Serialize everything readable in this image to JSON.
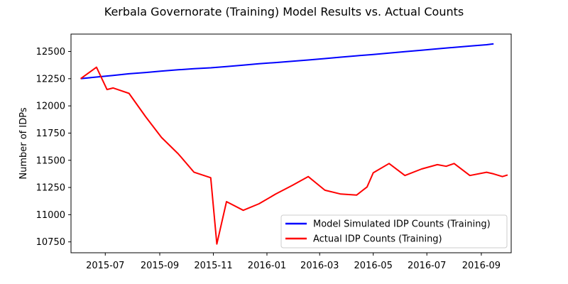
{
  "chart_data": {
    "type": "line",
    "title": "Kerbala Governorate (Training) Model Results vs. Actual Counts",
    "xlabel": "",
    "ylabel": "Number of IDPs",
    "xlim": [
      "2015-05-23",
      "2016-10-05"
    ],
    "ylim": [
      10650,
      12660
    ],
    "x_ticks": [
      {
        "date": "2015-07-01",
        "label": "2015-07"
      },
      {
        "date": "2015-09-01",
        "label": "2015-09"
      },
      {
        "date": "2015-11-01",
        "label": "2015-11"
      },
      {
        "date": "2016-01-01",
        "label": "2016-01"
      },
      {
        "date": "2016-03-01",
        "label": "2016-03"
      },
      {
        "date": "2016-05-01",
        "label": "2016-05"
      },
      {
        "date": "2016-07-01",
        "label": "2016-07"
      },
      {
        "date": "2016-09-01",
        "label": "2016-09"
      }
    ],
    "y_ticks": [
      10750,
      11000,
      11250,
      11500,
      11750,
      12000,
      12250,
      12500
    ],
    "grid": false,
    "legend_position": "lower-right",
    "series": [
      {
        "name": "Model Simulated IDP Counts (Training)",
        "color": "#0000ff",
        "points": [
          [
            "2015-06-03",
            12250
          ],
          [
            "2015-06-21",
            12265
          ],
          [
            "2015-07-10",
            12280
          ],
          [
            "2015-07-28",
            12295
          ],
          [
            "2015-08-16",
            12307
          ],
          [
            "2015-09-03",
            12320
          ],
          [
            "2015-09-22",
            12332
          ],
          [
            "2015-10-10",
            12342
          ],
          [
            "2015-10-29",
            12350
          ],
          [
            "2015-11-16",
            12362
          ],
          [
            "2015-12-05",
            12375
          ],
          [
            "2015-12-23",
            12388
          ],
          [
            "2016-01-11",
            12398
          ],
          [
            "2016-01-30",
            12410
          ],
          [
            "2016-02-17",
            12422
          ],
          [
            "2016-03-07",
            12435
          ],
          [
            "2016-03-25",
            12448
          ],
          [
            "2016-04-12",
            12460
          ],
          [
            "2016-05-01",
            12473
          ],
          [
            "2016-05-19",
            12485
          ],
          [
            "2016-06-06",
            12498
          ],
          [
            "2016-06-25",
            12512
          ],
          [
            "2016-07-13",
            12525
          ],
          [
            "2016-08-01",
            12538
          ],
          [
            "2016-08-19",
            12550
          ],
          [
            "2016-09-07",
            12562
          ],
          [
            "2016-09-15",
            12570
          ]
        ]
      },
      {
        "name": "Actual IDP Counts (Training)",
        "color": "#ff0000",
        "points": [
          [
            "2015-06-03",
            12250
          ],
          [
            "2015-06-21",
            12355
          ],
          [
            "2015-07-03",
            12150
          ],
          [
            "2015-07-10",
            12165
          ],
          [
            "2015-07-28",
            12115
          ],
          [
            "2015-08-16",
            11900
          ],
          [
            "2015-09-03",
            11710
          ],
          [
            "2015-09-22",
            11560
          ],
          [
            "2015-10-10",
            11390
          ],
          [
            "2015-10-29",
            11340
          ],
          [
            "2015-11-05",
            10730
          ],
          [
            "2015-11-16",
            11120
          ],
          [
            "2015-12-05",
            11040
          ],
          [
            "2015-12-23",
            11100
          ],
          [
            "2016-01-11",
            11190
          ],
          [
            "2016-01-30",
            11270
          ],
          [
            "2016-02-17",
            11350
          ],
          [
            "2016-03-07",
            11225
          ],
          [
            "2016-03-25",
            11190
          ],
          [
            "2016-04-12",
            11180
          ],
          [
            "2016-04-24",
            11255
          ],
          [
            "2016-05-01",
            11385
          ],
          [
            "2016-05-19",
            11470
          ],
          [
            "2016-06-06",
            11360
          ],
          [
            "2016-06-25",
            11420
          ],
          [
            "2016-07-13",
            11460
          ],
          [
            "2016-07-23",
            11445
          ],
          [
            "2016-08-01",
            11470
          ],
          [
            "2016-08-19",
            11360
          ],
          [
            "2016-09-07",
            11390
          ],
          [
            "2016-09-15",
            11375
          ],
          [
            "2016-09-25",
            11350
          ],
          [
            "2016-10-01",
            11365
          ]
        ]
      }
    ]
  }
}
